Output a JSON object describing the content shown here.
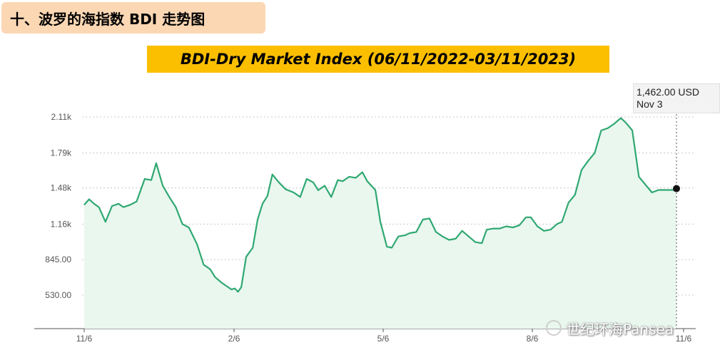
{
  "section_title": "十、波罗的海指数 BDI 走势图",
  "chart_title": "BDI-Dry Market Index (06/11/2022-03/11/2023)",
  "tooltip": {
    "value": "1,462.00 USD",
    "date": "Nov 3"
  },
  "watermark": {
    "text": "世纪环海Pansea",
    "icon": "wechat-icon"
  },
  "colors": {
    "line": "#2fa871",
    "fill": "#e9f7ef",
    "grid": "#c8c8c8",
    "title_bg": "#fbbf00",
    "section_bg": "#fbd7b4"
  },
  "chart_data": {
    "type": "area",
    "title": "BDI-Dry Market Index (06/11/2022-03/11/2023)",
    "xlabel": "",
    "ylabel": "",
    "x_ticks": [
      "11/6",
      "2/6",
      "5/6",
      "8/6",
      "11/6"
    ],
    "y_ticks": [
      {
        "value": 530,
        "label": "530.00"
      },
      {
        "value": 845,
        "label": "845.00"
      },
      {
        "value": 1160,
        "label": "1.16k"
      },
      {
        "value": 1480,
        "label": "1.48k"
      },
      {
        "value": 1790,
        "label": "1.79k"
      },
      {
        "value": 2110,
        "label": "2.11k"
      }
    ],
    "ylim": [
      220,
      2320
    ],
    "grid": true,
    "highlight": {
      "value": 1462,
      "label": "1,462.00 USD",
      "date": "Nov 3"
    },
    "series": [
      {
        "x": [
          "2022-11-06",
          "2022-11-09",
          "2022-11-12",
          "2022-11-15",
          "2022-11-19",
          "2022-11-23",
          "2022-11-27",
          "2022-11-30",
          "2022-12-04",
          "2022-12-08",
          "2022-12-13",
          "2022-12-17",
          "2022-12-20",
          "2022-12-24",
          "2022-12-28",
          "2023-01-01",
          "2023-01-05",
          "2023-01-09",
          "2023-01-14",
          "2023-01-18",
          "2023-01-22",
          "2023-01-25",
          "2023-01-29",
          "2023-02-02",
          "2023-02-04",
          "2023-02-06",
          "2023-02-08",
          "2023-02-10",
          "2023-02-13",
          "2023-02-17",
          "2023-02-20",
          "2023-02-23",
          "2023-02-26",
          "2023-03-01",
          "2023-03-05",
          "2023-03-09",
          "2023-03-14",
          "2023-03-18",
          "2023-03-22",
          "2023-03-26",
          "2023-03-29",
          "2023-04-02",
          "2023-04-06",
          "2023-04-10",
          "2023-04-13",
          "2023-04-17",
          "2023-04-21",
          "2023-04-25",
          "2023-04-28",
          "2023-05-03",
          "2023-05-06",
          "2023-05-10",
          "2023-05-13",
          "2023-05-17",
          "2023-05-21",
          "2023-05-24",
          "2023-05-28",
          "2023-06-01",
          "2023-06-05",
          "2023-06-09",
          "2023-06-13",
          "2023-06-17",
          "2023-06-21",
          "2023-06-25",
          "2023-06-29",
          "2023-07-03",
          "2023-07-07",
          "2023-07-10",
          "2023-07-14",
          "2023-07-18",
          "2023-07-22",
          "2023-07-26",
          "2023-07-30",
          "2023-08-03",
          "2023-08-06",
          "2023-08-10",
          "2023-08-14",
          "2023-08-18",
          "2023-08-22",
          "2023-08-25",
          "2023-08-29",
          "2023-09-02",
          "2023-09-06",
          "2023-09-10",
          "2023-09-14",
          "2023-09-18",
          "2023-09-22",
          "2023-09-26",
          "2023-09-30",
          "2023-10-03",
          "2023-10-07",
          "2023-10-11",
          "2023-10-15",
          "2023-10-19",
          "2023-10-23",
          "2023-10-27",
          "2023-10-31",
          "2023-11-03"
        ],
        "values": [
          1330,
          1380,
          1340,
          1310,
          1180,
          1320,
          1340,
          1310,
          1330,
          1360,
          1560,
          1550,
          1700,
          1500,
          1400,
          1310,
          1160,
          1130,
          980,
          800,
          760,
          690,
          640,
          600,
          580,
          590,
          560,
          600,
          870,
          950,
          1200,
          1340,
          1410,
          1600,
          1530,
          1470,
          1440,
          1400,
          1560,
          1530,
          1460,
          1500,
          1400,
          1550,
          1540,
          1580,
          1570,
          1620,
          1540,
          1460,
          1180,
          960,
          950,
          1050,
          1060,
          1080,
          1090,
          1200,
          1210,
          1090,
          1050,
          1020,
          1030,
          1100,
          1050,
          1000,
          990,
          1110,
          1120,
          1120,
          1140,
          1130,
          1150,
          1220,
          1220,
          1140,
          1100,
          1110,
          1160,
          1180,
          1350,
          1420,
          1640,
          1720,
          1790,
          1990,
          2010,
          2050,
          2100,
          2060,
          1990,
          1580,
          1510,
          1440,
          1462,
          1462,
          1462,
          1462
        ]
      }
    ]
  }
}
